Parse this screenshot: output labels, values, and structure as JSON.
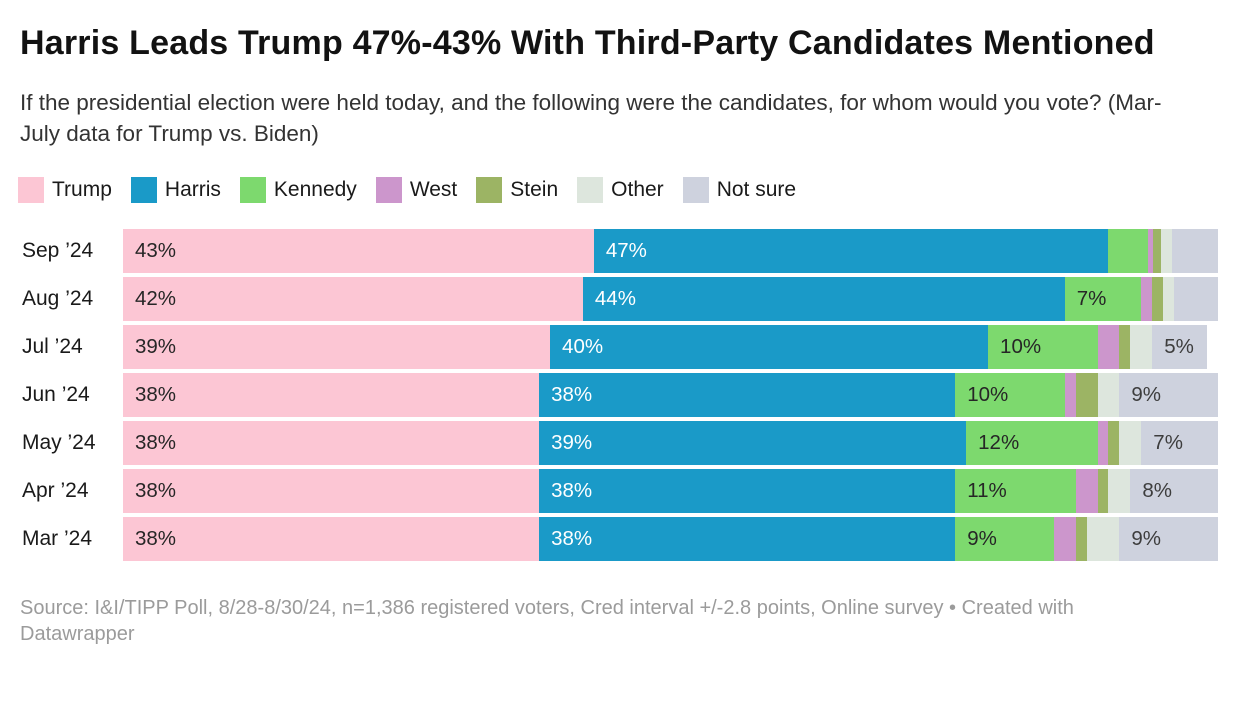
{
  "header": {
    "title": "Harris Leads Trump 47%-43% With Third-Party Candidates Mentioned",
    "subtitle": "If the presidential election were held today, and the following were the candidates, for whom would you vote? (Mar-July data for Trump vs. Biden)"
  },
  "colors": {
    "trump": "#fcc6d4",
    "harris": "#1a9ac8",
    "kennedy": "#7dd96e",
    "west": "#cc96cc",
    "stein": "#9cb464",
    "other": "#dde6dd",
    "not_sure": "#ced2de",
    "label_dark": "#262626",
    "label_light": "#ffffff"
  },
  "chart_data": {
    "type": "bar",
    "stacked": true,
    "orientation": "horizontal",
    "legend_position": "top",
    "grid": false,
    "xlim": [
      0,
      100
    ],
    "label_threshold_pct": 5,
    "categories": [
      "Sep ’24",
      "Aug ’24",
      "Jul ’24",
      "Jun ’24",
      "May ’24",
      "Apr ’24",
      "Mar ’24"
    ],
    "series": [
      {
        "name": "Trump",
        "color": "#fcc6d4",
        "text_color": "#262626",
        "values": [
          43,
          42,
          39,
          38,
          38,
          38,
          38
        ]
      },
      {
        "name": "Harris",
        "color": "#1a9ac8",
        "text_color": "#ffffff",
        "values": [
          47,
          44,
          40,
          38,
          39,
          38,
          38
        ]
      },
      {
        "name": "Kennedy",
        "color": "#7dd96e",
        "text_color": "#262626",
        "values": [
          3.6,
          7,
          10,
          10,
          12,
          11,
          9
        ]
      },
      {
        "name": "West",
        "color": "#cc96cc",
        "text_color": "#262626",
        "values": [
          0.5,
          1,
          2,
          1,
          1,
          2,
          2
        ]
      },
      {
        "name": "Stein",
        "color": "#9cb464",
        "text_color": "#262626",
        "values": [
          0.7,
          1,
          1,
          2,
          1,
          1,
          1
        ]
      },
      {
        "name": "Other",
        "color": "#dde6dd",
        "text_color": "#262626",
        "values": [
          1,
          1,
          2,
          2,
          2,
          2,
          3
        ]
      },
      {
        "name": "Not sure",
        "color": "#ced2de",
        "text_color": "#3d3d3d",
        "values": [
          4.2,
          4,
          5,
          9,
          7,
          8,
          9
        ]
      }
    ],
    "shown_value_labels": {
      "Sep '24": [
        "43%",
        "47%"
      ],
      "Aug '24": [
        "42%",
        "44%",
        "7%"
      ],
      "Jul '24": [
        "39%",
        "40%",
        "10%",
        "5%"
      ],
      "Jun '24": [
        "38%",
        "38%",
        "10%",
        "9%"
      ],
      "May '24": [
        "38%",
        "39%",
        "12%",
        "7%"
      ],
      "Apr '24": [
        "38%",
        "38%",
        "11%",
        "8%"
      ],
      "Mar '24": [
        "38%",
        "38%",
        "9%",
        "9%"
      ]
    }
  },
  "footer": {
    "source": "Source: I&I/TIPP Poll, 8/28-8/30/24, n=1,386 registered voters, Cred interval +/-2.8 points, Online survey",
    "bullet": "•",
    "attribution": "Created with Datawrapper"
  }
}
